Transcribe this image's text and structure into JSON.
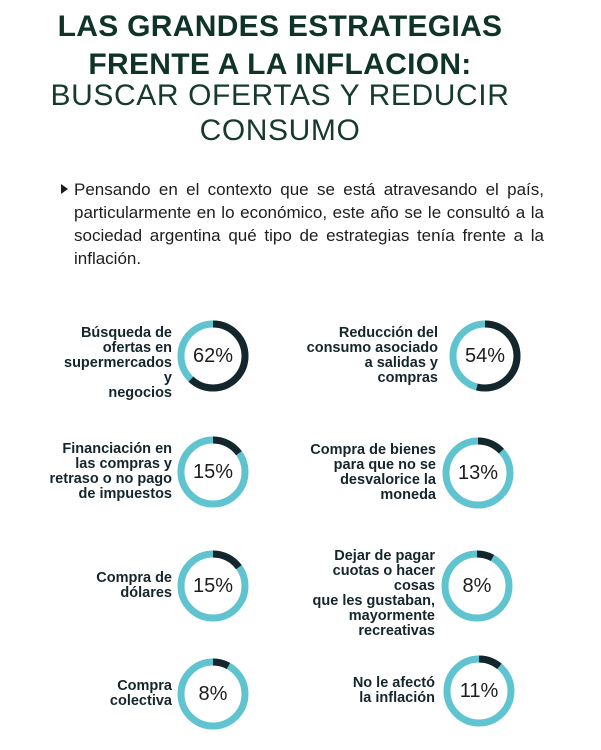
{
  "header": {
    "title_line1": "LAS GRANDES ESTRATEGIAS",
    "title_line2": "FRENTE A LA INFLACION:",
    "subtitle_line1": "BUSCAR OFERTAS Y REDUCIR",
    "subtitle_line2": "CONSUMO"
  },
  "intro": {
    "text": "Pensando en el contexto que se está atravesando el país, particularmente en lo económico, este año se le consultó a la sociedad argentina qué tipo de estrategias tenía frente a la inflación."
  },
  "colors": {
    "title": "#0f3328",
    "ring_value": "#14262c",
    "ring_track": "#5fc4cf"
  },
  "items": [
    {
      "label": "Búsqueda de ofertas en supermercados y negocios",
      "value": 62,
      "display": "62%"
    },
    {
      "label": "Reducción del consumo asociado a salidas y compras",
      "value": 54,
      "display": "54%"
    },
    {
      "label": "Financiación en las compras y retraso o no pago de impuestos",
      "value": 15,
      "display": "15%"
    },
    {
      "label": "Compra de bienes para que no se desvalorice la moneda",
      "value": 13,
      "display": "13%"
    },
    {
      "label": "Compra de dólares",
      "value": 15,
      "display": "15%"
    },
    {
      "label": "Dejar de pagar cuotas o hacer cosas que les gustaban, mayormente recreativas",
      "value": 8,
      "display": "8%"
    },
    {
      "label": "Compra colectiva",
      "value": 8,
      "display": "8%"
    },
    {
      "label": "No le afectó la inflación",
      "value": 11,
      "display": "11%"
    }
  ],
  "chart_data": {
    "type": "pie",
    "subtype": "donut-grid",
    "title": "LAS GRANDES ESTRATEGIAS FRENTE A LA INFLACION: BUSCAR OFERTAS Y REDUCIR CONSUMO",
    "categories": [
      "Búsqueda de ofertas en supermercados y negocios",
      "Reducción del consumo asociado a salidas y compras",
      "Financiación en las compras y retraso o no pago de impuestos",
      "Compra de bienes para que no se desvalorice la moneda",
      "Compra de dólares",
      "Dejar de pagar cuotas o hacer cosas que les gustaban, mayormente recreativas",
      "Compra colectiva",
      "No le afectó la inflación"
    ],
    "values": [
      62,
      54,
      15,
      13,
      15,
      8,
      8,
      11
    ],
    "unit": "%",
    "layout": "2 columns x 4 rows, each category an independent donut ring (value arc dark, remainder light teal)"
  }
}
